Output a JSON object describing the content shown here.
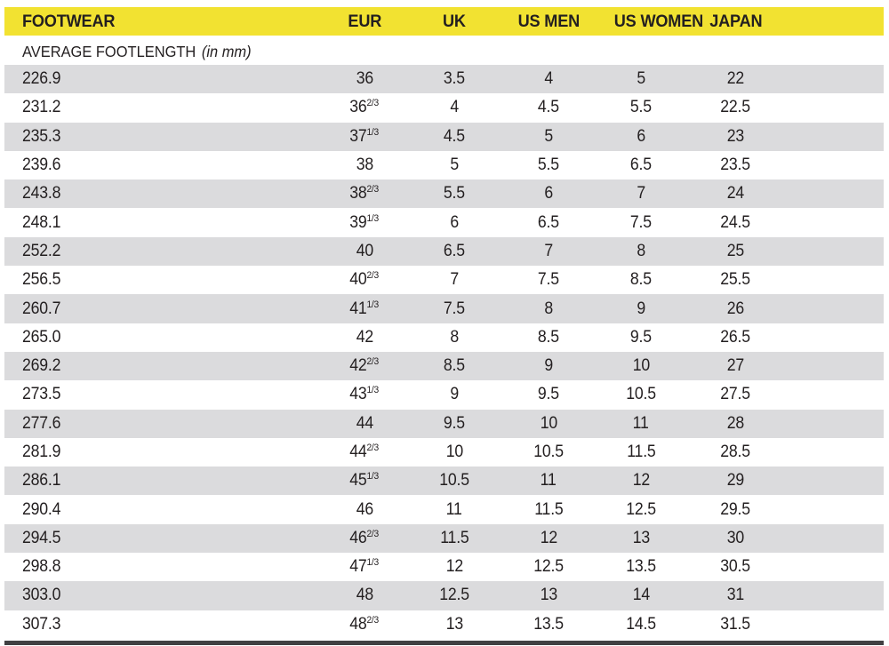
{
  "chart_data": {
    "type": "table",
    "title": "",
    "columns": [
      "FOOTWEAR",
      "EUR",
      "UK",
      "US MEN",
      "US WOMEN",
      "JAPAN"
    ],
    "subheader": {
      "label": "AVERAGE FOOTLENGTH",
      "unit_note": "(in mm)"
    },
    "rows": [
      {
        "footwear": "226.9",
        "eur": "36",
        "eur_frac": "",
        "uk": "3.5",
        "us_men": "4",
        "us_women": "5",
        "japan": "22"
      },
      {
        "footwear": "231.2",
        "eur": "36",
        "eur_frac": "2/3",
        "uk": "4",
        "us_men": "4.5",
        "us_women": "5.5",
        "japan": "22.5"
      },
      {
        "footwear": "235.3",
        "eur": "37",
        "eur_frac": "1/3",
        "uk": "4.5",
        "us_men": "5",
        "us_women": "6",
        "japan": "23"
      },
      {
        "footwear": "239.6",
        "eur": "38",
        "eur_frac": "",
        "uk": "5",
        "us_men": "5.5",
        "us_women": "6.5",
        "japan": "23.5"
      },
      {
        "footwear": "243.8",
        "eur": "38",
        "eur_frac": "2/3",
        "uk": "5.5",
        "us_men": "6",
        "us_women": "7",
        "japan": "24"
      },
      {
        "footwear": "248.1",
        "eur": "39",
        "eur_frac": "1/3",
        "uk": "6",
        "us_men": "6.5",
        "us_women": "7.5",
        "japan": "24.5"
      },
      {
        "footwear": "252.2",
        "eur": "40",
        "eur_frac": "",
        "uk": "6.5",
        "us_men": "7",
        "us_women": "8",
        "japan": "25"
      },
      {
        "footwear": "256.5",
        "eur": "40",
        "eur_frac": "2/3",
        "uk": "7",
        "us_men": "7.5",
        "us_women": "8.5",
        "japan": "25.5"
      },
      {
        "footwear": "260.7",
        "eur": "41",
        "eur_frac": "1/3",
        "uk": "7.5",
        "us_men": "8",
        "us_women": "9",
        "japan": "26"
      },
      {
        "footwear": "265.0",
        "eur": "42",
        "eur_frac": "",
        "uk": "8",
        "us_men": "8.5",
        "us_women": "9.5",
        "japan": "26.5"
      },
      {
        "footwear": "269.2",
        "eur": "42",
        "eur_frac": "2/3",
        "uk": "8.5",
        "us_men": "9",
        "us_women": "10",
        "japan": "27"
      },
      {
        "footwear": "273.5",
        "eur": "43",
        "eur_frac": "1/3",
        "uk": "9",
        "us_men": "9.5",
        "us_women": "10.5",
        "japan": "27.5"
      },
      {
        "footwear": "277.6",
        "eur": "44",
        "eur_frac": "",
        "uk": "9.5",
        "us_men": "10",
        "us_women": "11",
        "japan": "28"
      },
      {
        "footwear": "281.9",
        "eur": "44",
        "eur_frac": "2/3",
        "uk": "10",
        "us_men": "10.5",
        "us_women": "11.5",
        "japan": "28.5"
      },
      {
        "footwear": "286.1",
        "eur": "45",
        "eur_frac": "1/3",
        "uk": "10.5",
        "us_men": "11",
        "us_women": "12",
        "japan": "29"
      },
      {
        "footwear": "290.4",
        "eur": "46",
        "eur_frac": "",
        "uk": "11",
        "us_men": "11.5",
        "us_women": "12.5",
        "japan": "29.5"
      },
      {
        "footwear": "294.5",
        "eur": "46",
        "eur_frac": "2/3",
        "uk": "11.5",
        "us_men": "12",
        "us_women": "13",
        "japan": "30"
      },
      {
        "footwear": "298.8",
        "eur": "47",
        "eur_frac": "1/3",
        "uk": "12",
        "us_men": "12.5",
        "us_women": "13.5",
        "japan": "30.5"
      },
      {
        "footwear": "303.0",
        "eur": "48",
        "eur_frac": "",
        "uk": "12.5",
        "us_men": "13",
        "us_women": "14",
        "japan": "31"
      },
      {
        "footwear": "307.3",
        "eur": "48",
        "eur_frac": "2/3",
        "uk": "13",
        "us_men": "13.5",
        "us_women": "14.5",
        "japan": "31.5"
      }
    ],
    "layout": {
      "alternating_rows": "first data row shaded, then every other",
      "legend": "none",
      "grid": "off"
    }
  },
  "colors": {
    "header_bg": "#F2E231",
    "alt_row_bg": "#DBDBDD",
    "text": "#231F20",
    "bottom_bar": "#414042"
  }
}
